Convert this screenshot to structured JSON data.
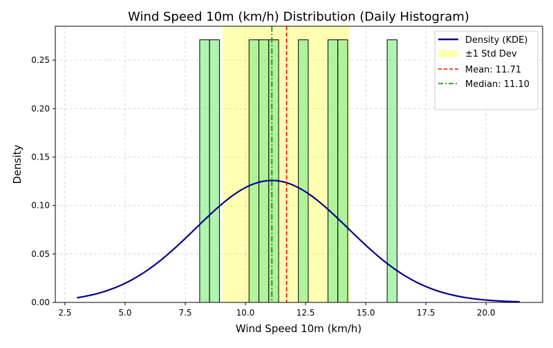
{
  "chart_data": {
    "type": "bar",
    "title": "Wind Speed 10m (km/h) Distribution (Daily Histogram)",
    "xlabel": "Wind Speed 10m (km/h)",
    "ylabel": "Density",
    "xlim": [
      2.1,
      22.35
    ],
    "ylim": [
      0,
      0.285
    ],
    "xticks": [
      "2.5",
      "5.0",
      "7.5",
      "10.0",
      "12.5",
      "15.0",
      "17.5",
      "20.0"
    ],
    "xtick_values": [
      2.5,
      5.0,
      7.5,
      10.0,
      12.5,
      15.0,
      17.5,
      20.0
    ],
    "yticks": [
      "0.00",
      "0.05",
      "0.10",
      "0.15",
      "0.20",
      "0.25"
    ],
    "ytick_values": [
      0,
      0.05,
      0.1,
      0.15,
      0.2,
      0.25
    ],
    "grid": true,
    "legend_position": "top-right",
    "bin_width": 0.41,
    "bars": [
      {
        "x_start": 8.1,
        "value": 0.271
      },
      {
        "x_start": 8.51,
        "value": 0.271
      },
      {
        "x_start": 10.15,
        "value": 0.271
      },
      {
        "x_start": 10.56,
        "value": 0.271
      },
      {
        "x_start": 10.97,
        "value": 0.271
      },
      {
        "x_start": 12.2,
        "value": 0.271
      },
      {
        "x_start": 13.43,
        "value": 0.271
      },
      {
        "x_start": 13.84,
        "value": 0.271
      },
      {
        "x_start": 15.89,
        "value": 0.271
      }
    ],
    "bar_color": "#90ee90",
    "kde": {
      "name": "Density (KDE)",
      "mean": 11.1,
      "sd": 3.17,
      "x_range": [
        3.0,
        21.4
      ],
      "color": "#00008b"
    },
    "std_band": {
      "name": "±1 Std Dev",
      "from": 9.05,
      "to": 14.35,
      "color": "#ffff00"
    },
    "mean_line": {
      "name": "Mean: 11.71",
      "value": 11.71,
      "color": "#ff0000"
    },
    "median_line": {
      "name": "Median: 11.10",
      "value": 11.1,
      "color": "#008000"
    },
    "legend": [
      "Density (KDE)",
      "±1 Std Dev",
      "Mean: 11.71",
      "Median: 11.10"
    ]
  }
}
